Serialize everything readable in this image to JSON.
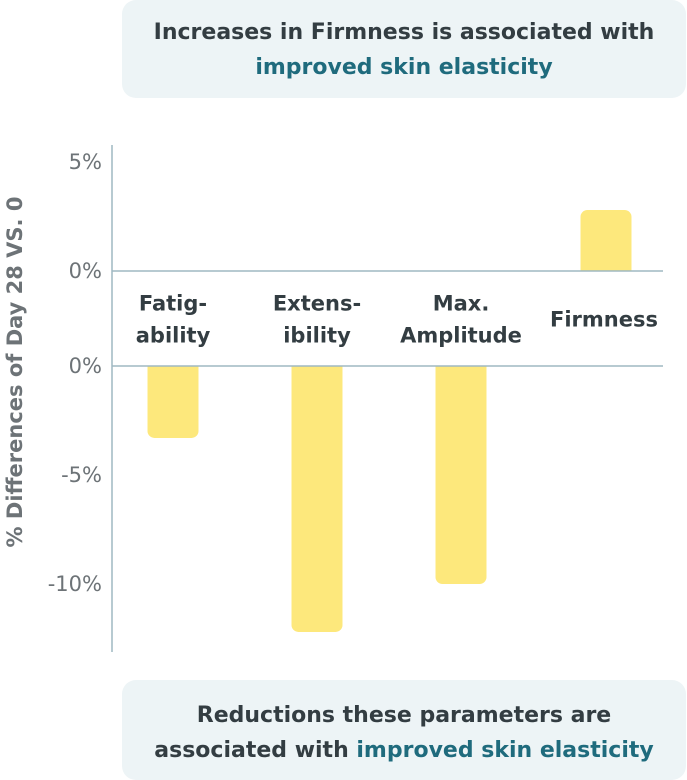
{
  "header": {
    "line1": "Increases in Firmness is associated with",
    "line2": "improved skin elasticity"
  },
  "footer": {
    "line1": "Reductions these parameters are",
    "line2_prefix": "associated with ",
    "line2_accent": "improved skin elasticity"
  },
  "colors": {
    "bar": "#fde87c",
    "axis": "#9fb8c2",
    "accent": "#1f6b7d"
  },
  "chart_data": {
    "type": "bar",
    "ylabel": "% Differences of Day 28 VS. 0",
    "categories": [
      {
        "lines": [
          "Fatig-",
          "ability"
        ]
      },
      {
        "lines": [
          "Extens-",
          "ibility"
        ]
      },
      {
        "lines": [
          "Max.",
          "Amplitude"
        ]
      },
      {
        "lines": [
          "Firmness"
        ]
      }
    ],
    "values": [
      -3.3,
      -12.2,
      -10.0,
      2.8
    ],
    "positive_ticks": [
      "5%",
      "0%"
    ],
    "negative_ticks": [
      "0%",
      "-5%",
      "-10%"
    ],
    "ylim": [
      -12.5,
      5
    ]
  }
}
